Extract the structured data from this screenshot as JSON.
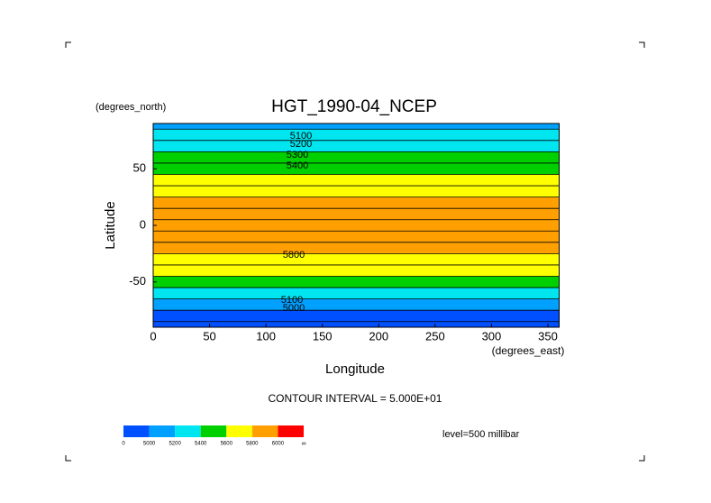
{
  "chart_data": {
    "type": "contour-map",
    "title": "HGT_1990-04_NCEP",
    "ylabel": "Latitude",
    "yunit": "(degrees_north)",
    "xlabel": "Longitude",
    "xunit": "(degrees_east)",
    "xlim": [
      0,
      360
    ],
    "ylim": [
      -90,
      90
    ],
    "xticks": [
      0,
      50,
      100,
      150,
      200,
      250,
      300,
      350
    ],
    "yticks": [
      -50,
      0,
      50
    ],
    "latitudes": [
      90,
      80,
      70,
      60,
      50,
      40,
      30,
      20,
      10,
      0,
      -10,
      -20,
      -30,
      -40,
      -50,
      -60,
      -70,
      -80,
      -90
    ],
    "values": [
      5180,
      5200,
      5300,
      5420,
      5520,
      5620,
      5740,
      5830,
      5870,
      5880,
      5880,
      5860,
      5760,
      5620,
      5450,
      5250,
      5100,
      4980,
      4950
    ],
    "contour_labels": [
      5100,
      5200,
      5300,
      5400,
      5800,
      5100,
      5000
    ],
    "note": "CONTOUR INTERVAL = 5.000E+01",
    "level": "level=500 millibar",
    "colorbar": {
      "levels": [
        0,
        5000,
        5200,
        5400,
        5600,
        5800,
        6000
      ],
      "top_label": "∞",
      "colors": [
        "#0050ff",
        "#00a0ff",
        "#00e6f0",
        "#00d000",
        "#ffff00",
        "#ffa000",
        "#ff0000"
      ]
    }
  }
}
